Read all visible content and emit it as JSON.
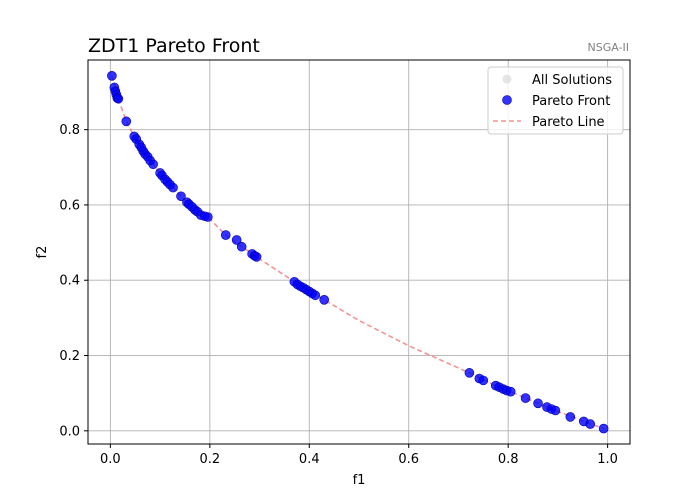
{
  "chart_data": {
    "type": "scatter",
    "title": "ZDT1 Pareto Front",
    "subtitle": "NSGA-II",
    "xlabel": "f1",
    "ylabel": "f2",
    "xlim": [
      -0.045,
      1.045
    ],
    "ylim": [
      -0.035,
      0.985
    ],
    "xticks": [
      0.0,
      0.2,
      0.4,
      0.6,
      0.8,
      1.0
    ],
    "xtick_labels": [
      "0.0",
      "0.2",
      "0.4",
      "0.6",
      "0.8",
      "1.0"
    ],
    "yticks": [
      0.0,
      0.2,
      0.4,
      0.6,
      0.8
    ],
    "ytick_labels": [
      "0.0",
      "0.2",
      "0.4",
      "0.6",
      "0.8"
    ],
    "grid": true,
    "legend_position": "top-right",
    "series": [
      {
        "name": "All Solutions",
        "kind": "scatter",
        "color": "#d3d3d3",
        "points": []
      },
      {
        "name": "Pareto Front",
        "kind": "scatter",
        "color": "#0000ff",
        "points": [
          [
            0.003,
            0.943
          ],
          [
            0.008,
            0.912
          ],
          [
            0.01,
            0.902
          ],
          [
            0.012,
            0.893
          ],
          [
            0.014,
            0.884
          ],
          [
            0.016,
            0.882
          ],
          [
            0.032,
            0.822
          ],
          [
            0.048,
            0.782
          ],
          [
            0.052,
            0.775
          ],
          [
            0.058,
            0.761
          ],
          [
            0.062,
            0.753
          ],
          [
            0.066,
            0.743
          ],
          [
            0.07,
            0.735
          ],
          [
            0.075,
            0.728
          ],
          [
            0.08,
            0.718
          ],
          [
            0.086,
            0.708
          ],
          [
            0.1,
            0.685
          ],
          [
            0.104,
            0.678
          ],
          [
            0.11,
            0.668
          ],
          [
            0.115,
            0.661
          ],
          [
            0.12,
            0.654
          ],
          [
            0.126,
            0.646
          ],
          [
            0.142,
            0.623
          ],
          [
            0.154,
            0.607
          ],
          [
            0.158,
            0.602
          ],
          [
            0.164,
            0.595
          ],
          [
            0.17,
            0.587
          ],
          [
            0.175,
            0.582
          ],
          [
            0.182,
            0.573
          ],
          [
            0.19,
            0.57
          ],
          [
            0.196,
            0.568
          ],
          [
            0.232,
            0.52
          ],
          [
            0.254,
            0.507
          ],
          [
            0.264,
            0.489
          ],
          [
            0.285,
            0.47
          ],
          [
            0.29,
            0.465
          ],
          [
            0.294,
            0.462
          ],
          [
            0.37,
            0.396
          ],
          [
            0.376,
            0.389
          ],
          [
            0.382,
            0.384
          ],
          [
            0.388,
            0.38
          ],
          [
            0.394,
            0.375
          ],
          [
            0.4,
            0.37
          ],
          [
            0.406,
            0.365
          ],
          [
            0.412,
            0.36
          ],
          [
            0.43,
            0.348
          ],
          [
            0.722,
            0.154
          ],
          [
            0.742,
            0.139
          ],
          [
            0.75,
            0.134
          ],
          [
            0.775,
            0.12
          ],
          [
            0.782,
            0.116
          ],
          [
            0.79,
            0.111
          ],
          [
            0.797,
            0.107
          ],
          [
            0.805,
            0.104
          ],
          [
            0.835,
            0.087
          ],
          [
            0.86,
            0.073
          ],
          [
            0.878,
            0.063
          ],
          [
            0.887,
            0.058
          ],
          [
            0.895,
            0.054
          ],
          [
            0.925,
            0.037
          ],
          [
            0.952,
            0.025
          ],
          [
            0.965,
            0.018
          ],
          [
            0.992,
            0.006
          ]
        ]
      },
      {
        "name": "Pareto Line",
        "kind": "line",
        "style": "dashed",
        "color": "#f08080",
        "x": [
          0.003,
          0.016,
          0.032,
          0.048,
          0.07,
          0.1,
          0.126,
          0.154,
          0.196,
          0.232,
          0.264,
          0.294,
          0.37,
          0.43,
          0.5,
          0.6,
          0.722,
          0.775,
          0.805,
          0.86,
          0.895,
          0.952,
          0.992
        ],
        "y": [
          0.943,
          0.882,
          0.822,
          0.782,
          0.735,
          0.685,
          0.646,
          0.607,
          0.568,
          0.52,
          0.489,
          0.462,
          0.396,
          0.348,
          0.293,
          0.226,
          0.154,
          0.12,
          0.104,
          0.073,
          0.054,
          0.025,
          0.006
        ]
      }
    ]
  }
}
